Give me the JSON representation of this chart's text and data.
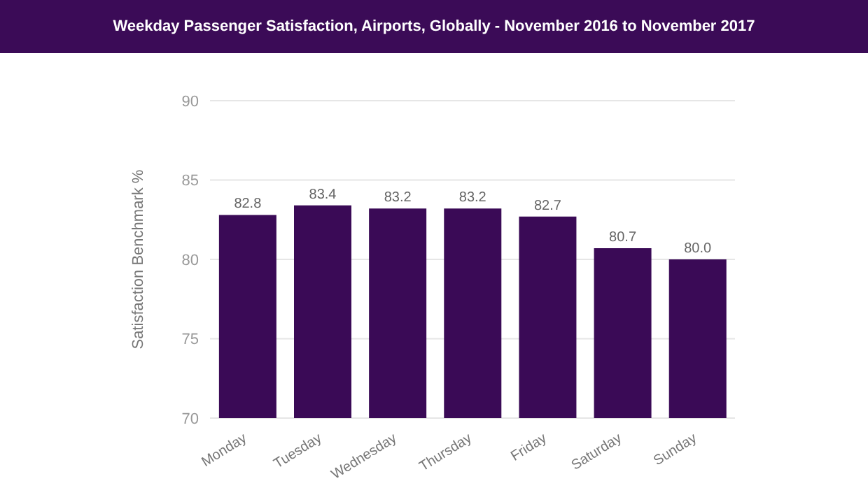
{
  "chart_data": {
    "type": "bar",
    "title": "Weekday Passenger Satisfaction, Airports, Globally - November 2016 to November 2017",
    "ylabel": "Satisfaction Benchmark %",
    "categories": [
      "Monday",
      "Tuesday",
      "Wednesday",
      "Thursday",
      "Friday",
      "Saturday",
      "Sunday"
    ],
    "values": [
      82.8,
      83.4,
      83.2,
      83.2,
      82.7,
      80.7,
      80.0
    ],
    "value_labels": [
      "82.8",
      "83.4",
      "83.2",
      "83.2",
      "82.7",
      "80.7",
      "80.0"
    ],
    "color": "#3a0a56",
    "ylim": [
      70,
      90
    ],
    "yticks": [
      70,
      75,
      80,
      85,
      90
    ],
    "grid": "y"
  }
}
